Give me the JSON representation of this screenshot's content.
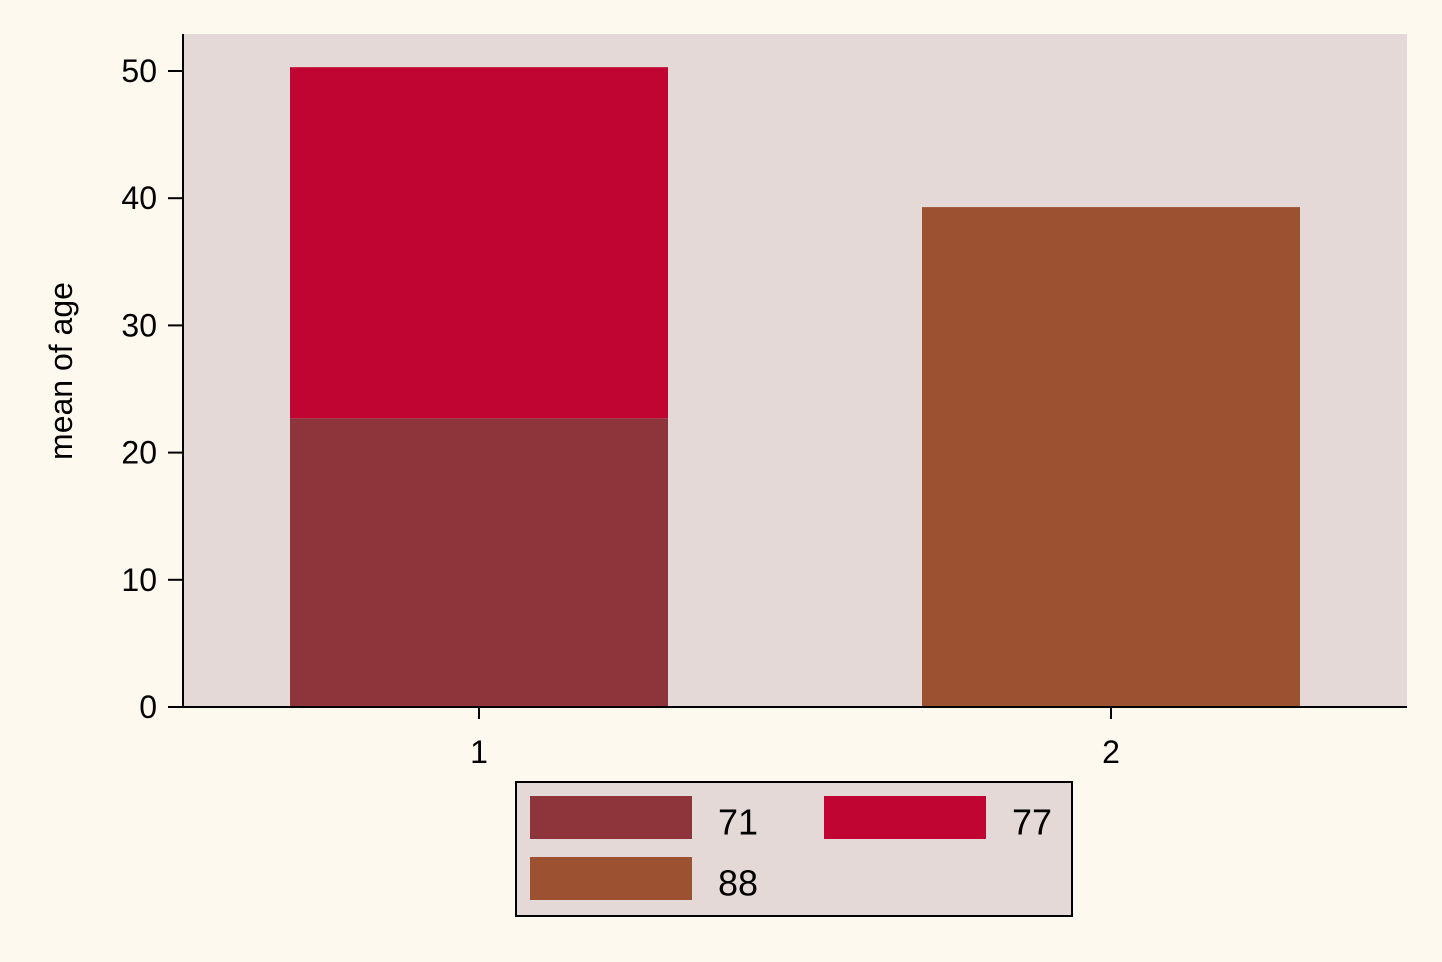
{
  "chart_data": {
    "type": "bar",
    "stacked": true,
    "categories": [
      "1",
      "2"
    ],
    "ylabel": "mean of age",
    "xlabel": "",
    "title": "",
    "ylim": [
      0,
      53
    ],
    "yticks": [
      0,
      10,
      20,
      30,
      40,
      50
    ],
    "grid": false,
    "legend": {
      "position": "bottom",
      "columns": 2,
      "entries": [
        "71",
        "77",
        "88"
      ]
    },
    "series": [
      {
        "name": "71",
        "values": [
          22.7,
          0
        ],
        "color": "#8e343b"
      },
      {
        "name": "77",
        "values": [
          27.6,
          0
        ],
        "color": "#c00533"
      },
      {
        "name": "88",
        "values": [
          0,
          39.3
        ],
        "color": "#9c5130"
      }
    ],
    "colors": {
      "page_background": "#fef9ef",
      "plot_background": "#e5d9d8",
      "legend_background": "#e5d9d8"
    }
  }
}
